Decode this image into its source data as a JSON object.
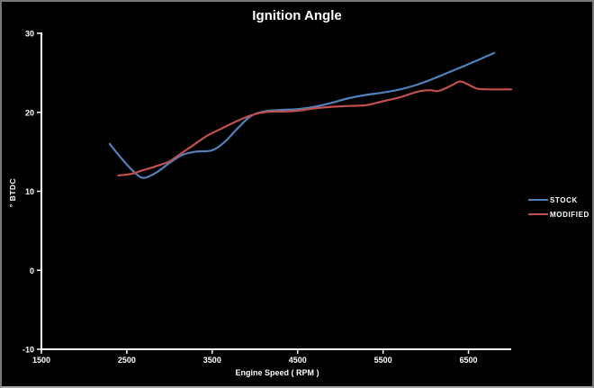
{
  "window": {
    "background": "#000000",
    "border_color": "#787878",
    "text_color": "#ffffff"
  },
  "chart_data": {
    "type": "line",
    "title": "Ignition Angle",
    "xlabel": "Engine Speed ( RPM )",
    "ylabel": "° BTDC",
    "xlim": [
      1500,
      7000
    ],
    "ylim": [
      -10,
      30
    ],
    "x_ticks": [
      1500,
      2500,
      3500,
      4500,
      5500,
      6500
    ],
    "y_ticks": [
      30,
      20,
      10,
      0,
      -10
    ],
    "grid": false,
    "background": "#000000",
    "axis_color": "#ffffff",
    "legend_position": "right-middle",
    "series": [
      {
        "name": "STOCK",
        "color": "#4F81BD",
        "points": [
          [
            2300,
            16.0
          ],
          [
            2450,
            14.0
          ],
          [
            2600,
            12.3
          ],
          [
            2700,
            11.7
          ],
          [
            2850,
            12.4
          ],
          [
            3000,
            13.6
          ],
          [
            3150,
            14.6
          ],
          [
            3300,
            15.0
          ],
          [
            3500,
            15.2
          ],
          [
            3650,
            16.3
          ],
          [
            3800,
            18.0
          ],
          [
            3950,
            19.5
          ],
          [
            4100,
            20.1
          ],
          [
            4300,
            20.3
          ],
          [
            4500,
            20.4
          ],
          [
            4700,
            20.7
          ],
          [
            4900,
            21.2
          ],
          [
            5100,
            21.8
          ],
          [
            5300,
            22.2
          ],
          [
            5500,
            22.5
          ],
          [
            5700,
            22.9
          ],
          [
            5900,
            23.5
          ],
          [
            6100,
            24.3
          ],
          [
            6300,
            25.2
          ],
          [
            6500,
            26.1
          ],
          [
            6650,
            26.8
          ],
          [
            6800,
            27.5
          ]
        ]
      },
      {
        "name": "MODIFIED",
        "color": "#C0504D",
        "points": [
          [
            2400,
            12.0
          ],
          [
            2550,
            12.2
          ],
          [
            2700,
            12.7
          ],
          [
            2850,
            13.2
          ],
          [
            3000,
            13.8
          ],
          [
            3150,
            14.9
          ],
          [
            3300,
            16.0
          ],
          [
            3450,
            17.1
          ],
          [
            3600,
            17.9
          ],
          [
            3750,
            18.7
          ],
          [
            3900,
            19.4
          ],
          [
            4050,
            19.9
          ],
          [
            4200,
            20.1
          ],
          [
            4350,
            20.1
          ],
          [
            4500,
            20.2
          ],
          [
            4700,
            20.5
          ],
          [
            4900,
            20.7
          ],
          [
            5100,
            20.8
          ],
          [
            5300,
            20.9
          ],
          [
            5500,
            21.4
          ],
          [
            5700,
            21.9
          ],
          [
            5900,
            22.6
          ],
          [
            6050,
            22.8
          ],
          [
            6150,
            22.7
          ],
          [
            6300,
            23.4
          ],
          [
            6400,
            23.9
          ],
          [
            6500,
            23.5
          ],
          [
            6600,
            23.0
          ],
          [
            6750,
            22.9
          ],
          [
            7000,
            22.9
          ]
        ]
      }
    ]
  }
}
